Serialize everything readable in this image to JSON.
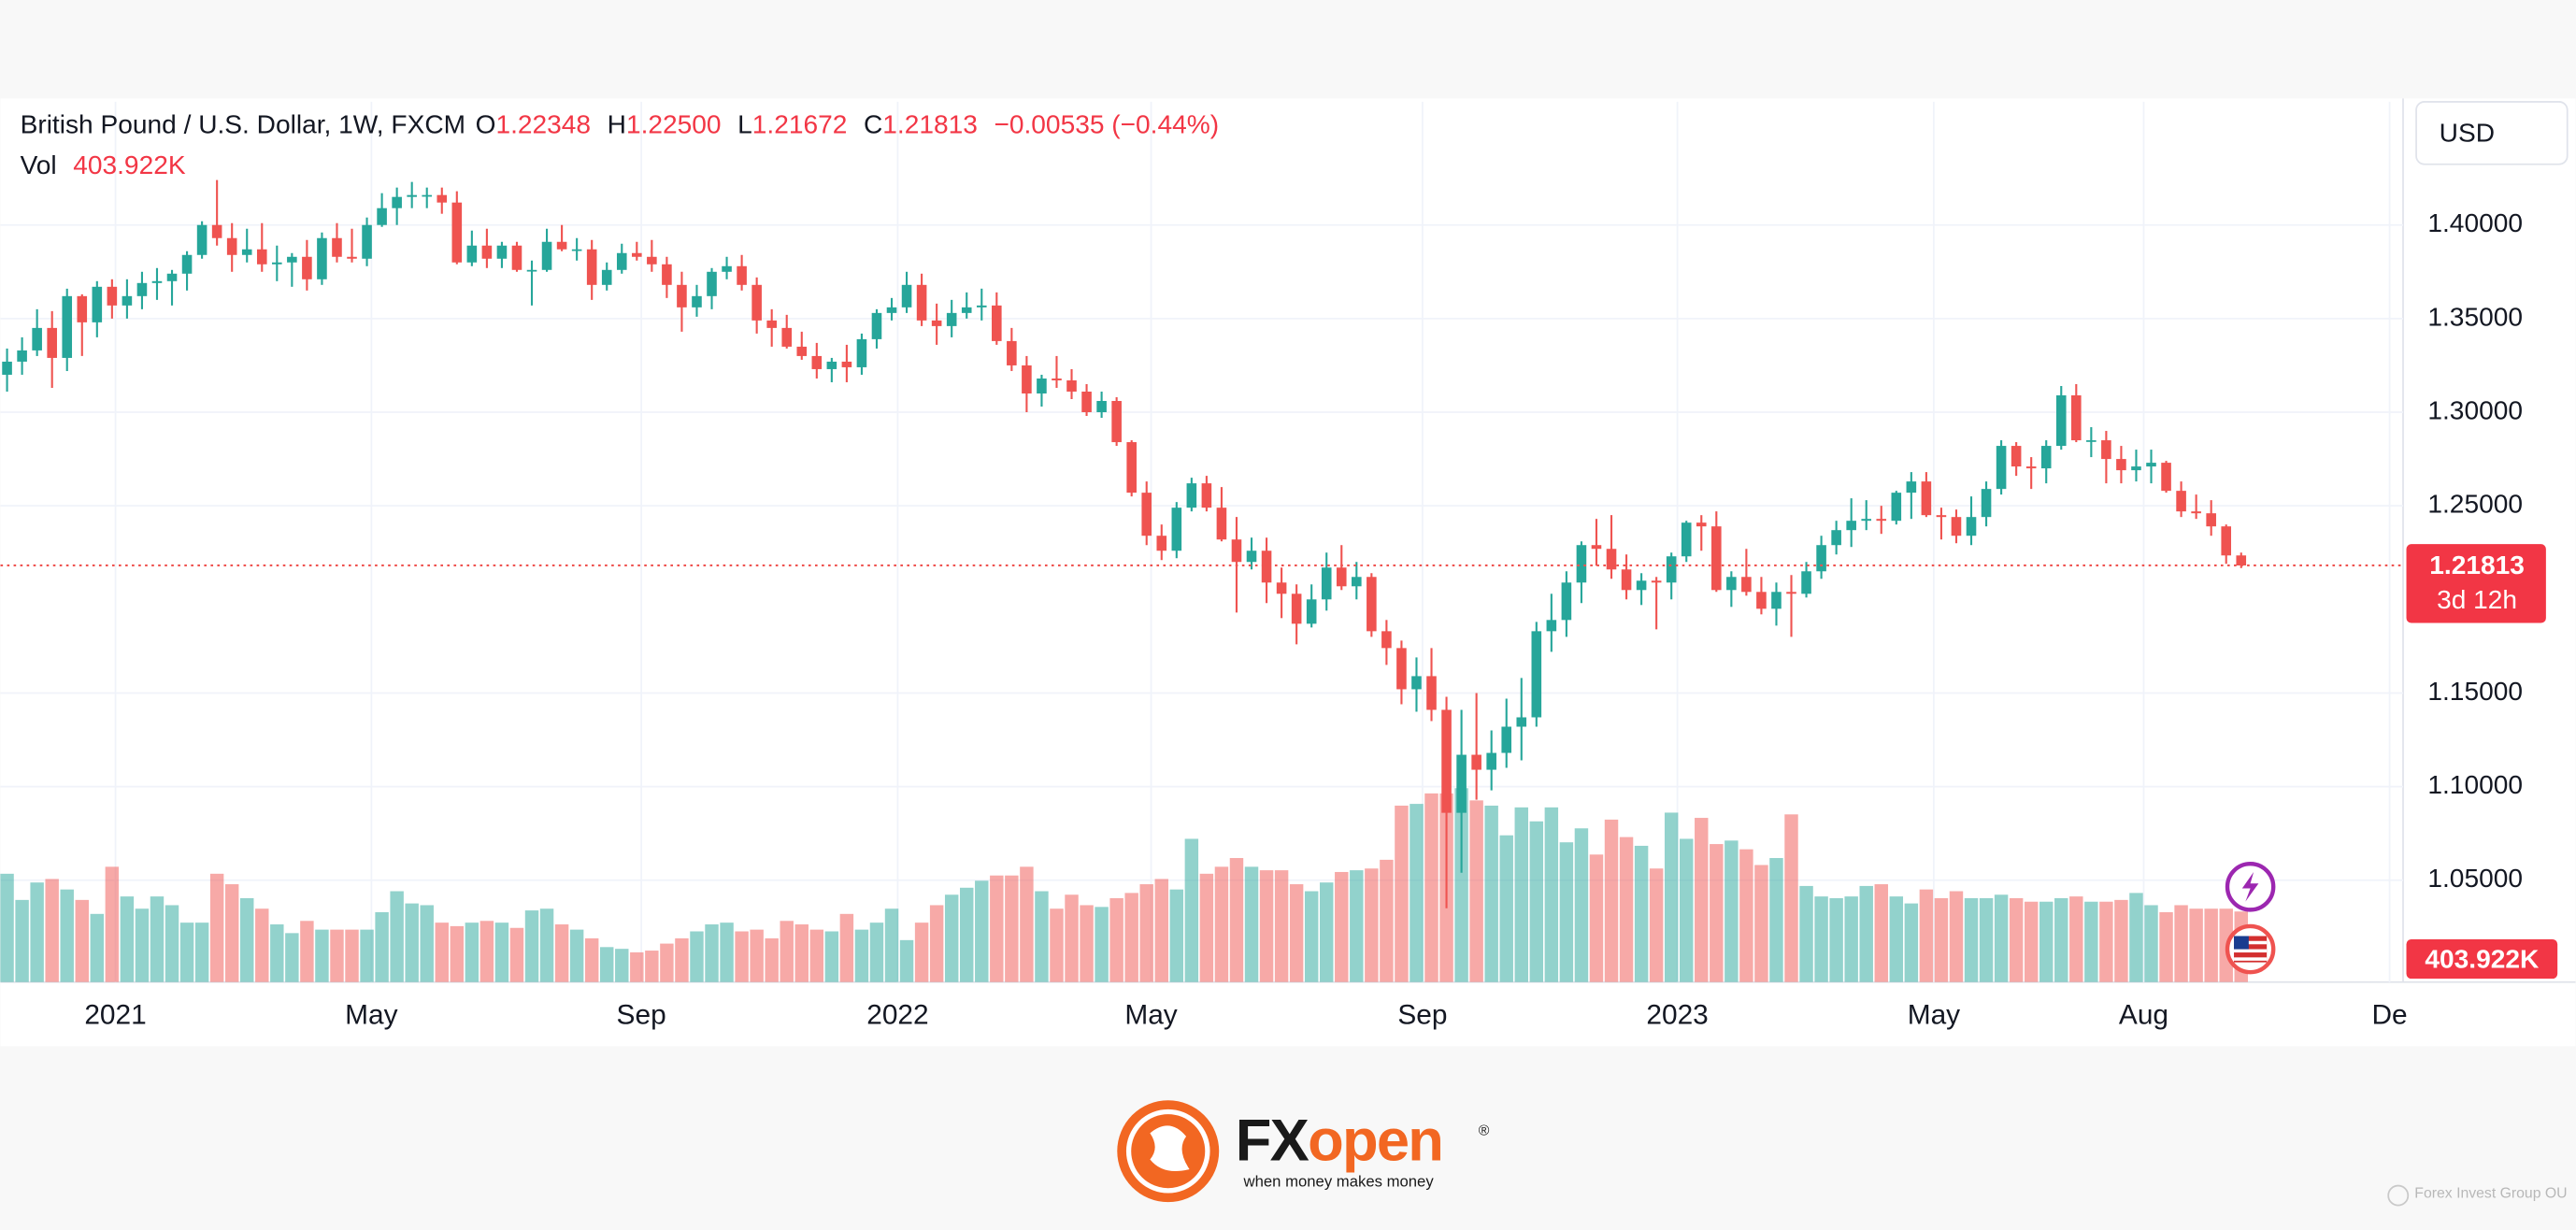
{
  "header": {
    "symbol": "British Pound / U.S. Dollar, 1W, FXCM",
    "o_key": "O",
    "open": "1.22348",
    "h_key": "H",
    "high": "1.22500",
    "l_key": "L",
    "low": "1.21672",
    "c_key": "C",
    "close": "1.21813",
    "change": "−0.00535 (−0.44%)",
    "vol_key": "Vol",
    "vol": "403.922K"
  },
  "currency_button": "USD",
  "chart_data": {
    "type": "candlestick",
    "up_color": "#26a69a",
    "down_color": "#ef5350",
    "open": [
      1.32,
      1.327,
      1.333,
      1.345,
      1.329,
      1.362,
      1.348,
      1.367,
      1.357,
      1.362,
      1.369,
      1.37,
      1.374,
      1.384,
      1.4,
      1.393,
      1.384,
      1.387,
      1.379,
      1.38,
      1.383,
      1.371,
      1.393,
      1.383,
      1.382,
      1.4,
      1.409,
      1.415,
      1.416,
      1.416,
      1.412,
      1.38,
      1.389,
      1.382,
      1.389,
      1.376,
      1.376,
      1.391,
      1.387,
      1.387,
      1.368,
      1.376,
      1.385,
      1.383,
      1.379,
      1.368,
      1.356,
      1.362,
      1.375,
      1.378,
      1.368,
      1.349,
      1.345,
      1.335,
      1.33,
      1.323,
      1.327,
      1.324,
      1.339,
      1.353,
      1.356,
      1.368,
      1.349,
      1.346,
      1.353,
      1.356,
      1.357,
      1.338,
      1.325,
      1.31,
      1.318,
      1.317,
      1.311,
      1.3,
      1.306,
      1.284,
      1.257,
      1.234,
      1.226,
      1.249,
      1.262,
      1.249,
      1.232,
      1.22,
      1.226,
      1.209,
      1.203,
      1.187,
      1.2,
      1.217,
      1.207,
      1.212,
      1.183,
      1.174,
      1.152,
      1.159,
      1.141,
      1.086,
      1.117,
      1.109,
      1.118,
      1.132,
      1.137,
      1.183,
      1.189,
      1.209,
      1.229,
      1.227,
      1.216,
      1.205,
      1.21,
      1.209,
      1.223,
      1.241,
      1.239,
      1.205,
      1.212,
      1.204,
      1.195,
      1.204,
      1.203,
      1.215,
      1.229,
      1.237,
      1.242,
      1.243,
      1.242,
      1.257,
      1.263,
      1.245,
      1.244,
      1.234,
      1.244,
      1.259,
      1.282,
      1.271,
      1.27,
      1.282,
      1.309,
      1.285,
      1.285,
      1.275,
      1.269,
      1.271,
      1.273,
      1.258,
      1.247,
      1.246,
      1.239,
      1.22348
    ],
    "high": [
      1.334,
      1.34,
      1.355,
      1.354,
      1.366,
      1.363,
      1.37,
      1.371,
      1.371,
      1.375,
      1.377,
      1.376,
      1.386,
      1.402,
      1.424,
      1.401,
      1.398,
      1.401,
      1.389,
      1.385,
      1.392,
      1.396,
      1.401,
      1.398,
      1.404,
      1.417,
      1.42,
      1.423,
      1.42,
      1.42,
      1.418,
      1.397,
      1.398,
      1.391,
      1.391,
      1.381,
      1.398,
      1.4,
      1.393,
      1.392,
      1.38,
      1.39,
      1.391,
      1.392,
      1.383,
      1.375,
      1.368,
      1.377,
      1.383,
      1.384,
      1.372,
      1.355,
      1.352,
      1.343,
      1.337,
      1.329,
      1.336,
      1.342,
      1.355,
      1.361,
      1.375,
      1.374,
      1.358,
      1.36,
      1.364,
      1.366,
      1.364,
      1.345,
      1.33,
      1.32,
      1.33,
      1.323,
      1.315,
      1.311,
      1.308,
      1.285,
      1.263,
      1.24,
      1.252,
      1.265,
      1.266,
      1.26,
      1.244,
      1.233,
      1.233,
      1.217,
      1.208,
      1.208,
      1.225,
      1.229,
      1.22,
      1.214,
      1.189,
      1.178,
      1.169,
      1.174,
      1.148,
      1.141,
      1.15,
      1.13,
      1.147,
      1.158,
      1.188,
      1.203,
      1.215,
      1.231,
      1.243,
      1.245,
      1.224,
      1.214,
      1.212,
      1.225,
      1.242,
      1.245,
      1.247,
      1.215,
      1.227,
      1.212,
      1.209,
      1.213,
      1.22,
      1.234,
      1.242,
      1.254,
      1.253,
      1.25,
      1.258,
      1.268,
      1.268,
      1.249,
      1.248,
      1.255,
      1.263,
      1.285,
      1.284,
      1.276,
      1.285,
      1.314,
      1.315,
      1.292,
      1.29,
      1.282,
      1.28,
      1.28,
      1.274,
      1.263,
      1.256,
      1.253,
      1.24,
      1.225
    ],
    "low": [
      1.311,
      1.32,
      1.33,
      1.313,
      1.322,
      1.33,
      1.34,
      1.35,
      1.35,
      1.355,
      1.36,
      1.357,
      1.365,
      1.382,
      1.389,
      1.375,
      1.38,
      1.375,
      1.37,
      1.367,
      1.365,
      1.368,
      1.38,
      1.38,
      1.378,
      1.399,
      1.4,
      1.409,
      1.409,
      1.406,
      1.379,
      1.378,
      1.377,
      1.377,
      1.375,
      1.357,
      1.375,
      1.386,
      1.381,
      1.36,
      1.365,
      1.374,
      1.381,
      1.375,
      1.361,
      1.343,
      1.351,
      1.355,
      1.371,
      1.365,
      1.342,
      1.335,
      1.334,
      1.328,
      1.318,
      1.316,
      1.316,
      1.32,
      1.334,
      1.349,
      1.353,
      1.346,
      1.336,
      1.34,
      1.35,
      1.349,
      1.336,
      1.322,
      1.3,
      1.303,
      1.313,
      1.307,
      1.298,
      1.297,
      1.282,
      1.255,
      1.229,
      1.221,
      1.222,
      1.247,
      1.247,
      1.231,
      1.193,
      1.216,
      1.198,
      1.19,
      1.176,
      1.185,
      1.194,
      1.205,
      1.2,
      1.18,
      1.165,
      1.144,
      1.14,
      1.135,
      1.035,
      1.054,
      1.093,
      1.098,
      1.11,
      1.114,
      1.132,
      1.172,
      1.18,
      1.198,
      1.218,
      1.211,
      1.2,
      1.197,
      1.184,
      1.2,
      1.22,
      1.226,
      1.204,
      1.196,
      1.202,
      1.192,
      1.186,
      1.18,
      1.201,
      1.211,
      1.224,
      1.228,
      1.237,
      1.235,
      1.24,
      1.243,
      1.244,
      1.232,
      1.23,
      1.229,
      1.239,
      1.256,
      1.266,
      1.259,
      1.262,
      1.28,
      1.284,
      1.276,
      1.262,
      1.262,
      1.263,
      1.262,
      1.257,
      1.244,
      1.243,
      1.234,
      1.219,
      1.21672
    ],
    "close": [
      1.327,
      1.333,
      1.345,
      1.329,
      1.362,
      1.348,
      1.367,
      1.357,
      1.362,
      1.369,
      1.37,
      1.374,
      1.384,
      1.4,
      1.393,
      1.384,
      1.387,
      1.379,
      1.38,
      1.383,
      1.371,
      1.393,
      1.383,
      1.382,
      1.4,
      1.409,
      1.415,
      1.416,
      1.416,
      1.412,
      1.38,
      1.389,
      1.382,
      1.389,
      1.376,
      1.376,
      1.391,
      1.387,
      1.387,
      1.368,
      1.376,
      1.385,
      1.383,
      1.379,
      1.368,
      1.356,
      1.362,
      1.375,
      1.378,
      1.368,
      1.349,
      1.345,
      1.335,
      1.33,
      1.323,
      1.327,
      1.324,
      1.339,
      1.353,
      1.356,
      1.368,
      1.349,
      1.346,
      1.353,
      1.356,
      1.357,
      1.338,
      1.325,
      1.31,
      1.318,
      1.317,
      1.311,
      1.3,
      1.306,
      1.284,
      1.257,
      1.234,
      1.226,
      1.249,
      1.262,
      1.249,
      1.232,
      1.22,
      1.226,
      1.209,
      1.203,
      1.187,
      1.2,
      1.217,
      1.207,
      1.212,
      1.183,
      1.174,
      1.152,
      1.159,
      1.141,
      1.086,
      1.117,
      1.109,
      1.118,
      1.132,
      1.137,
      1.183,
      1.189,
      1.209,
      1.229,
      1.227,
      1.216,
      1.205,
      1.21,
      1.209,
      1.223,
      1.241,
      1.239,
      1.205,
      1.212,
      1.204,
      1.195,
      1.204,
      1.203,
      1.215,
      1.229,
      1.237,
      1.242,
      1.243,
      1.242,
      1.257,
      1.263,
      1.245,
      1.244,
      1.234,
      1.244,
      1.259,
      1.282,
      1.271,
      1.27,
      1.282,
      1.309,
      1.285,
      1.285,
      1.275,
      1.269,
      1.271,
      1.273,
      1.258,
      1.247,
      1.246,
      1.239,
      1.22348,
      1.21813
    ],
    "volume": [
      620,
      470,
      570,
      590,
      530,
      470,
      390,
      660,
      490,
      420,
      490,
      440,
      340,
      340,
      620,
      560,
      480,
      420,
      330,
      280,
      350,
      300,
      300,
      300,
      300,
      400,
      520,
      450,
      440,
      340,
      320,
      340,
      350,
      340,
      310,
      410,
      420,
      330,
      300,
      250,
      200,
      190,
      170,
      180,
      220,
      250,
      290,
      330,
      340,
      290,
      300,
      250,
      350,
      330,
      300,
      290,
      390,
      300,
      340,
      420,
      240,
      340,
      440,
      500,
      540,
      580,
      610,
      610,
      660,
      520,
      420,
      500,
      440,
      430,
      480,
      510,
      560,
      590,
      530,
      820,
      620,
      660,
      710,
      660,
      640,
      640,
      560,
      520,
      570,
      630,
      640,
      650,
      700,
      1010,
      1020,
      1080,
      1080,
      1110,
      1040,
      1010,
      840,
      1000,
      920,
      1000,
      800,
      880,
      730,
      930,
      830,
      780,
      650,
      970,
      820,
      940,
      790,
      810,
      760,
      670,
      710,
      960,
      550,
      490,
      480,
      490,
      550,
      560,
      490,
      450,
      530,
      480,
      520,
      480,
      480,
      500,
      480,
      460,
      460,
      480,
      490,
      460,
      460,
      470,
      510,
      440,
      400,
      440,
      420,
      420,
      420,
      403.922
    ],
    "xlim": [
      -0.44,
      159.8
    ],
    "ylim": [
      0.9956,
      1.4658
    ],
    "volume_lim": [
      0,
      5040
    ],
    "xticks": [
      {
        "value": 7.23,
        "label": "2021"
      },
      {
        "value": 24.3,
        "label": "May"
      },
      {
        "value": 42.3,
        "label": "Sep"
      },
      {
        "value": 59.4,
        "label": "2022"
      },
      {
        "value": 76.3,
        "label": "May"
      },
      {
        "value": 94.4,
        "label": "Sep"
      },
      {
        "value": 111.4,
        "label": "2023"
      },
      {
        "value": 128.5,
        "label": "May"
      },
      {
        "value": 142.5,
        "label": "Aug"
      },
      {
        "value": 158.9,
        "label": "De"
      }
    ],
    "yticks": [
      {
        "value": 1.4,
        "label": "1.40000"
      },
      {
        "value": 1.35,
        "label": "1.35000"
      },
      {
        "value": 1.3,
        "label": "1.30000"
      },
      {
        "value": 1.25,
        "label": "1.25000"
      },
      {
        "value": 1.15,
        "label": "1.15000"
      },
      {
        "value": 1.1,
        "label": "1.10000"
      },
      {
        "value": 1.05,
        "label": "1.05000"
      }
    ],
    "grid": true,
    "price_label": "1.21813",
    "countdown": "3d 12h",
    "volume_label": "403.922K"
  },
  "logo": {
    "brand_fx": "FX",
    "brand_open": "open",
    "registered": "®",
    "tagline": "when money makes money"
  },
  "watermark": "Forex Invest Group OU"
}
